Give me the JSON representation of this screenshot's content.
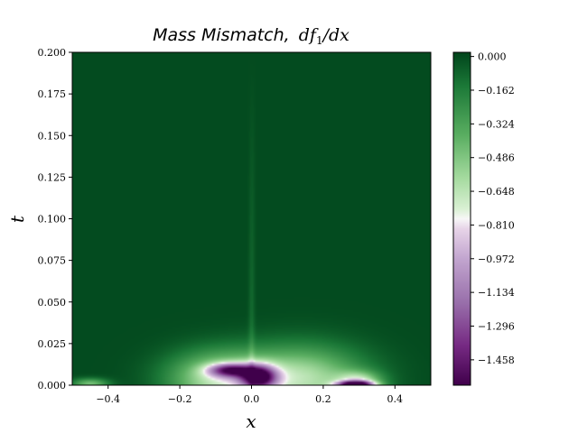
{
  "chart_data": {
    "type": "heatmap",
    "title_text": "Mass Mismatch,",
    "title_math": "df",
    "title_math_sub": "1",
    "title_math_tail": "/dx",
    "xlabel": "x",
    "ylabel": "t",
    "xlim": [
      -0.5,
      0.5
    ],
    "ylim": [
      0.0,
      0.2
    ],
    "x_ticks": [
      -0.4,
      -0.2,
      0.0,
      0.2,
      0.4
    ],
    "x_tick_labels": [
      "−0.4",
      "−0.2",
      "0.0",
      "0.2",
      "0.4"
    ],
    "y_ticks": [
      0.0,
      0.025,
      0.05,
      0.075,
      0.1,
      0.125,
      0.15,
      0.175,
      0.2
    ],
    "y_tick_labels": [
      "0.000",
      "0.025",
      "0.050",
      "0.075",
      "0.100",
      "0.125",
      "0.150",
      "0.175",
      "0.200"
    ],
    "colorbar": {
      "colormap": "PRGn",
      "vmin": -1.58,
      "vmax": 0.02,
      "ticks": [
        0.0,
        -0.162,
        -0.324,
        -0.486,
        -0.648,
        -0.81,
        -0.972,
        -1.134,
        -1.296,
        -1.458
      ],
      "tick_labels": [
        "0.000",
        "−0.162",
        "−0.324",
        "−0.486",
        "−0.648",
        "−0.810",
        "−0.972",
        "−1.134",
        "−1.296",
        "−1.458"
      ],
      "stops": [
        {
          "v": 0.0,
          "color": "#00441b"
        },
        {
          "v": 0.1,
          "color": "#1b7837"
        },
        {
          "v": 0.25,
          "color": "#5aae61"
        },
        {
          "v": 0.38,
          "color": "#a6dba0"
        },
        {
          "v": 0.47,
          "color": "#d9f0d3"
        },
        {
          "v": 0.5,
          "color": "#f7f7f7"
        },
        {
          "v": 0.53,
          "color": "#e7d4e8"
        },
        {
          "v": 0.62,
          "color": "#c2a5cf"
        },
        {
          "v": 0.75,
          "color": "#9970ab"
        },
        {
          "v": 0.88,
          "color": "#762a83"
        },
        {
          "v": 1.0,
          "color": "#40004b"
        }
      ]
    },
    "field": {
      "background_value": 0.0,
      "features": [
        {
          "kind": "lobe",
          "x0": -0.09,
          "t0": 0.004,
          "rx": 0.14,
          "rt": 0.016,
          "value": -0.62
        },
        {
          "kind": "lobe",
          "x0": 0.14,
          "t0": 0.004,
          "rx": 0.17,
          "rt": 0.019,
          "value": -0.62
        },
        {
          "kind": "lobe",
          "x0": 0.3,
          "t0": 0.002,
          "rx": 0.06,
          "rt": 0.006,
          "value": -0.55
        },
        {
          "kind": "lobe",
          "x0": -0.45,
          "t0": 0.001,
          "rx": 0.05,
          "rt": 0.003,
          "value": -0.45
        },
        {
          "kind": "core",
          "x0": 0.02,
          "t0": 0.005,
          "rx": 0.05,
          "rt": 0.007,
          "value": -1.2
        },
        {
          "kind": "core",
          "x0": -0.06,
          "t0": 0.009,
          "rx": 0.06,
          "rt": 0.004,
          "value": -0.95
        },
        {
          "kind": "core",
          "x0": 0.29,
          "t0": 0.0005,
          "rx": 0.05,
          "rt": 0.002,
          "value": -1.3
        },
        {
          "kind": "ray",
          "x0": 0.0,
          "t0": 0.0,
          "slope": 0.01,
          "width": 0.006,
          "length": 0.2,
          "value": -0.12
        }
      ]
    }
  }
}
